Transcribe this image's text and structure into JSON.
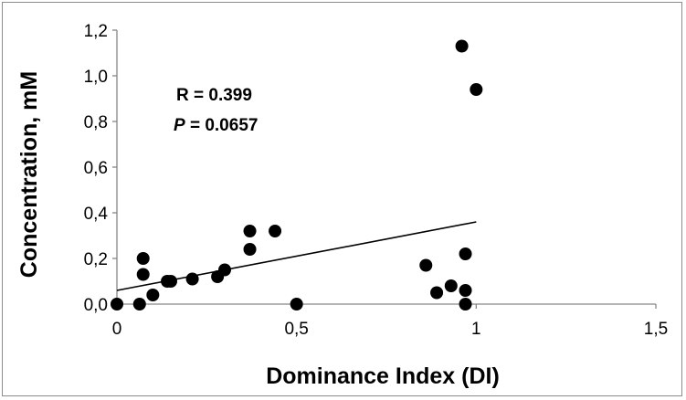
{
  "chart_data": {
    "type": "scatter",
    "xlabel": "Dominance Index (DI)",
    "ylabel": "Concentration, mM",
    "xlim": [
      0,
      1.5
    ],
    "ylim": [
      0,
      1.2
    ],
    "x_ticks": [
      "0",
      "0,5",
      "1",
      "1,5"
    ],
    "y_ticks": [
      "0,0",
      "0,2",
      "0,4",
      "0,6",
      "0,8",
      "1,0",
      "1,2"
    ],
    "grid": false,
    "legend": "none",
    "marker_color": "#000000",
    "series": [
      {
        "x": [
          0.0,
          0.063,
          0.073,
          0.073,
          0.1,
          0.14,
          0.15,
          0.21,
          0.28,
          0.3,
          0.37,
          0.37,
          0.44,
          0.5,
          0.86,
          0.89,
          0.93,
          0.96,
          0.97,
          0.97,
          0.97,
          1.0
        ],
        "y": [
          0.0,
          0.0,
          0.2,
          0.13,
          0.04,
          0.1,
          0.1,
          0.11,
          0.12,
          0.15,
          0.24,
          0.32,
          0.32,
          0.0,
          0.17,
          0.05,
          0.08,
          1.13,
          0.22,
          0.06,
          0.0,
          0.94
        ]
      }
    ],
    "trendline": {
      "x": [
        0,
        1
      ],
      "y": [
        0.06,
        0.36
      ]
    },
    "annotations": {
      "r_text": "R = 0.399",
      "p_symbol": "P",
      "p_value": " = 0.0657"
    }
  }
}
